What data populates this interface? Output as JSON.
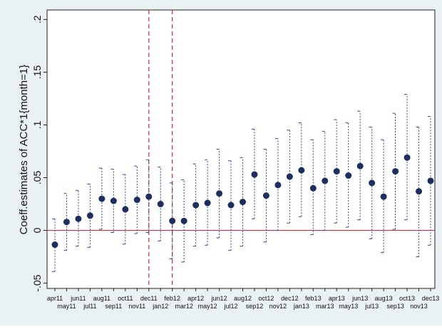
{
  "chart_data": {
    "type": "errorbar",
    "ylabel": "Coeff.estimates of ACC*1{month=1}",
    "categories": [
      "apr11",
      "may11",
      "jun11",
      "jul11",
      "aug11",
      "sep11",
      "oct11",
      "nov11",
      "dec11",
      "jan12",
      "feb12",
      "mar12",
      "apr12",
      "may12",
      "jun12",
      "jul12",
      "aug12",
      "sep12",
      "oct12",
      "nov12",
      "dec12",
      "jan13",
      "feb13",
      "mar13",
      "apr13",
      "may13",
      "jun13",
      "jul13",
      "aug13",
      "sep13",
      "oct13",
      "nov13",
      "dec13"
    ],
    "values": [
      -0.0135,
      0.008,
      0.011,
      0.014,
      0.03,
      0.028,
      0.02,
      0.029,
      0.032,
      0.025,
      0.009,
      0.009,
      0.024,
      0.026,
      0.035,
      0.024,
      0.027,
      0.053,
      0.033,
      0.043,
      0.051,
      0.057,
      0.04,
      0.047,
      0.056,
      0.052,
      0.061,
      0.045,
      0.032,
      0.056,
      0.069,
      0.037,
      0.047
    ],
    "lower": [
      -0.039,
      -0.019,
      -0.015,
      -0.016,
      0.001,
      -0.002,
      -0.013,
      -0.003,
      -0.002,
      -0.01,
      -0.027,
      -0.03,
      -0.015,
      -0.014,
      -0.007,
      -0.019,
      -0.015,
      0.011,
      -0.011,
      0.0,
      0.007,
      0.013,
      -0.004,
      0.0,
      0.007,
      0.003,
      0.01,
      -0.008,
      -0.021,
      0.001,
      0.01,
      -0.025,
      -0.014
    ],
    "upper": [
      0.011,
      0.035,
      0.038,
      0.044,
      0.059,
      0.058,
      0.053,
      0.061,
      0.067,
      0.06,
      0.045,
      0.048,
      0.063,
      0.067,
      0.077,
      0.066,
      0.069,
      0.096,
      0.077,
      0.087,
      0.095,
      0.102,
      0.086,
      0.094,
      0.105,
      0.102,
      0.113,
      0.098,
      0.086,
      0.111,
      0.129,
      0.098,
      0.108
    ],
    "color": "#1c2f5e",
    "ylim": [
      -0.055,
      0.209
    ],
    "yticks": [
      {
        "value": -0.05,
        "label": "-.05"
      },
      0,
      {
        "value": 0.05,
        "label": ".05"
      },
      {
        "value": 0.1,
        "label": ".1"
      },
      {
        "value": 0.15,
        "label": ".15"
      },
      {
        "value": 0.2,
        "label": ".2"
      }
    ],
    "hline": 0,
    "hline_color": "#c8323c",
    "vlines": [
      "dec11",
      "feb12"
    ]
  }
}
